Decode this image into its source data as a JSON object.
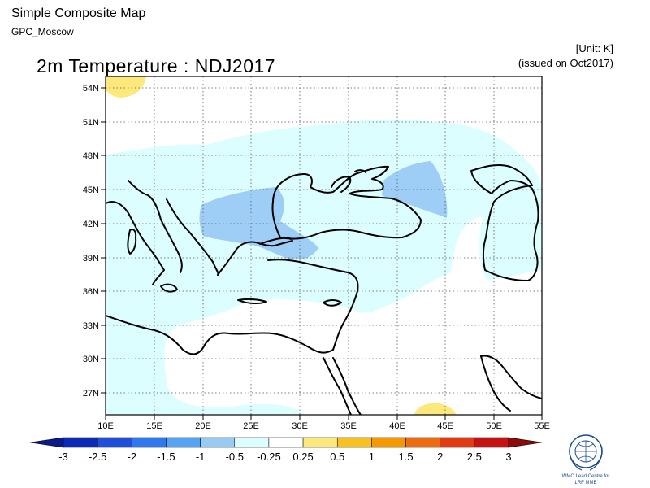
{
  "header": {
    "app_title": "Simple Composite Map",
    "subtitle": "GPC_Moscow",
    "unit": "[Unit: K]",
    "issued": "(issued on Oct2017)"
  },
  "map": {
    "title": "2m Temperature : NDJ2017",
    "lon_ticks": [
      "10E",
      "15E",
      "20E",
      "25E",
      "30E",
      "35E",
      "40E",
      "45E",
      "50E",
      "55E"
    ],
    "lat_ticks": [
      "54N",
      "51N",
      "48N",
      "45N",
      "42N",
      "39N",
      "36N",
      "33N",
      "30N",
      "27N"
    ],
    "lon_range": [
      10,
      55
    ],
    "lat_range": [
      25,
      55
    ],
    "grid": "dotted",
    "anomaly_colors": {
      "light_cyan": "#dcfefe",
      "light_blue": "#9ecdf6",
      "pale_yellow": "#fde87c"
    }
  },
  "colorbar": {
    "labels": [
      "-3",
      "-2.5",
      "-2",
      "-1.5",
      "-1",
      "-0.5",
      "-0.25",
      "0.25",
      "0.5",
      "1",
      "1.5",
      "2",
      "2.5",
      "3"
    ],
    "colors": [
      "#0b2bb6",
      "#1f4fd8",
      "#2f78ee",
      "#55a3f5",
      "#98cbf3",
      "#dcfefe",
      "#ffffff",
      "#fde87c",
      "#f8c21e",
      "#f59900",
      "#ee6c10",
      "#e23a12",
      "#c81212"
    ],
    "under_color": "#0a1a8c",
    "over_color": "#8c0a0a"
  },
  "logo": {
    "line1": "WMO Lead Centre for",
    "line2": "LRF MME"
  }
}
